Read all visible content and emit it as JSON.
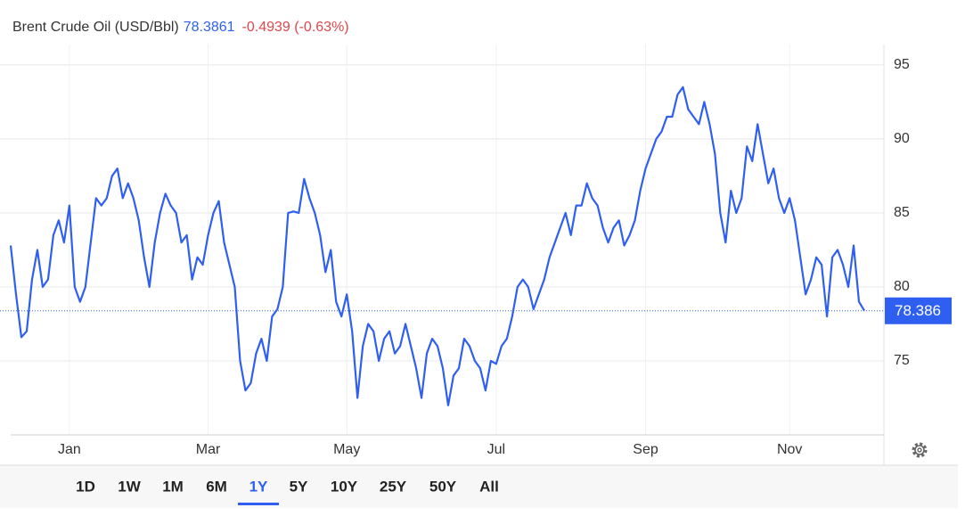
{
  "chart_data": {
    "type": "line",
    "title": "Brent Crude Oil (USD/Bbl)",
    "price_label": "78.3861",
    "change_label": "-0.4939 (-0.63%)",
    "categories": [
      null,
      null,
      null,
      null,
      null,
      null,
      null,
      null,
      null,
      null,
      null,
      "Jan",
      null,
      null,
      null,
      null,
      null,
      null,
      null,
      null,
      null,
      null,
      null,
      null,
      null,
      null,
      null,
      null,
      null,
      null,
      null,
      null,
      null,
      null,
      null,
      null,
      null,
      "Mar",
      null,
      null,
      null,
      null,
      null,
      null,
      null,
      null,
      null,
      null,
      null,
      null,
      null,
      null,
      null,
      null,
      null,
      null,
      null,
      null,
      null,
      null,
      null,
      null,
      null,
      "May",
      null,
      null,
      null,
      null,
      null,
      null,
      null,
      null,
      null,
      null,
      null,
      null,
      null,
      null,
      null,
      null,
      null,
      null,
      null,
      null,
      null,
      null,
      null,
      null,
      null,
      null,
      null,
      "Jul",
      null,
      null,
      null,
      null,
      null,
      null,
      null,
      null,
      null,
      null,
      null,
      null,
      null,
      null,
      null,
      null,
      null,
      null,
      null,
      null,
      null,
      null,
      null,
      null,
      null,
      null,
      null,
      "Sep",
      null,
      null,
      null,
      null,
      null,
      null,
      null,
      null,
      null,
      null,
      null,
      null,
      null,
      null,
      null,
      null,
      null,
      null,
      null,
      null,
      null,
      null,
      null,
      null,
      null,
      null,
      "Nov",
      null,
      null,
      null,
      null,
      null,
      null,
      null,
      null,
      null,
      null,
      null,
      null,
      null,
      null
    ],
    "series": [
      {
        "name": "Brent",
        "color": "#2f5ff0",
        "values": [
          82.8,
          79.5,
          76.6,
          77,
          80.5,
          82.5,
          80,
          80.5,
          83.5,
          84.5,
          83,
          85.5,
          80,
          79,
          80,
          83,
          86,
          85.5,
          86,
          87.5,
          88,
          86,
          87,
          86,
          84.5,
          82,
          80,
          83,
          85,
          86.3,
          85.5,
          85,
          83,
          83.5,
          80.5,
          82,
          81.5,
          83.5,
          85,
          85.8,
          83,
          81.5,
          80,
          75,
          73,
          73.5,
          75.5,
          76.5,
          75,
          78,
          78.5,
          80,
          85,
          85.1,
          85,
          87.3,
          86,
          85,
          83.5,
          81,
          82.5,
          79,
          78,
          79.5,
          77,
          72.5,
          76,
          77.5,
          77,
          75,
          76.5,
          77,
          75.5,
          76,
          77.5,
          76,
          74.5,
          72.5,
          75.5,
          76.5,
          76,
          74.5,
          72,
          74,
          74.5,
          76.5,
          76,
          75,
          74.5,
          73,
          75,
          74.8,
          76,
          76.5,
          78,
          80,
          80.5,
          80,
          78.5,
          79.5,
          80.5,
          82,
          83,
          84,
          85,
          83.5,
          85.5,
          85.5,
          87,
          86,
          85.5,
          84,
          83,
          84,
          84.5,
          82.8,
          83.5,
          84.5,
          86.5,
          88,
          89,
          90,
          90.5,
          91.5,
          91.5,
          93,
          93.5,
          92,
          91.5,
          91,
          92.5,
          91,
          89,
          85,
          83,
          86.5,
          85,
          86,
          89.5,
          88.5,
          91,
          89,
          87,
          88,
          86,
          85,
          86,
          84.5,
          82,
          79.5,
          80.5,
          82,
          81.5,
          78,
          82,
          82.5,
          81.5,
          80,
          82.8,
          79,
          78.4
        ]
      }
    ],
    "ylim": [
      70,
      96.5
    ],
    "yticks": [
      75,
      80,
      85,
      90,
      95
    ],
    "grid": true,
    "last_value": 78.3861,
    "last_value_label": "78.386"
  },
  "toolbar": {
    "ranges": [
      "1D",
      "1W",
      "1M",
      "6M",
      "1Y",
      "5Y",
      "10Y",
      "25Y",
      "50Y",
      "All"
    ],
    "active_index": 4
  }
}
